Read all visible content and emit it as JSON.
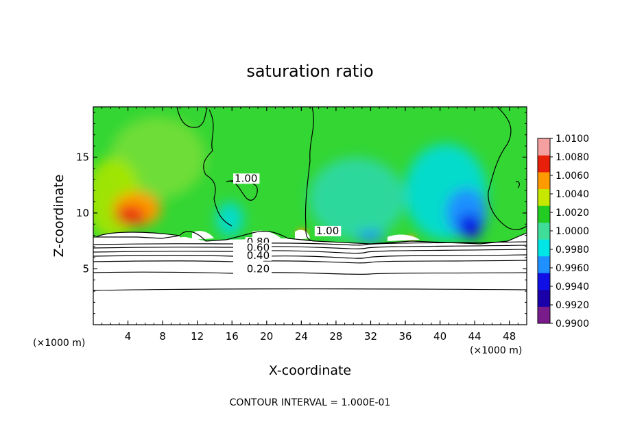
{
  "chart_data": {
    "type": "heatmap",
    "title": "saturation ratio",
    "xlabel": "X-coordinate",
    "ylabel": "Z-coordinate",
    "x_unit_left": "(×1000 m)",
    "x_unit_right": "(×1000 m)",
    "footer": "CONTOUR INTERVAL = 1.000E-01",
    "xlim": [
      0,
      50
    ],
    "ylim": [
      0,
      19.5
    ],
    "x_ticks": [
      4,
      8,
      12,
      16,
      20,
      24,
      28,
      32,
      36,
      40,
      44,
      48
    ],
    "y_ticks": [
      5,
      10,
      15
    ],
    "contour_labels": [
      {
        "text": "1.00",
        "x": 16.3,
        "y": 12.8
      },
      {
        "text": "1.00",
        "x": 25.7,
        "y": 8.1
      },
      {
        "text": "0.80",
        "x": 17.7,
        "y": 7.1
      },
      {
        "text": "0.60",
        "x": 17.7,
        "y": 6.6
      },
      {
        "text": "0.40",
        "x": 17.7,
        "y": 5.9
      },
      {
        "text": "0.20",
        "x": 17.7,
        "y": 4.7
      }
    ],
    "colorbar": {
      "levels": [
        0.99,
        0.992,
        0.994,
        0.996,
        0.998,
        1.0,
        1.002,
        1.004,
        1.006,
        1.008,
        1.01
      ],
      "tick_labels": [
        "1.0100",
        "1.0080",
        "1.0060",
        "1.0040",
        "1.0020",
        "1.0000",
        "0.9980",
        "0.9960",
        "0.9940",
        "0.9920",
        "0.9900"
      ],
      "colors": [
        "#7a1b8c",
        "#1a00a8",
        "#1010e6",
        "#1e90ff",
        "#00e5e5",
        "#3fdc9a",
        "#22cc22",
        "#c6e800",
        "#ff9a00",
        "#e8200a",
        "#f4a0a0"
      ]
    }
  }
}
